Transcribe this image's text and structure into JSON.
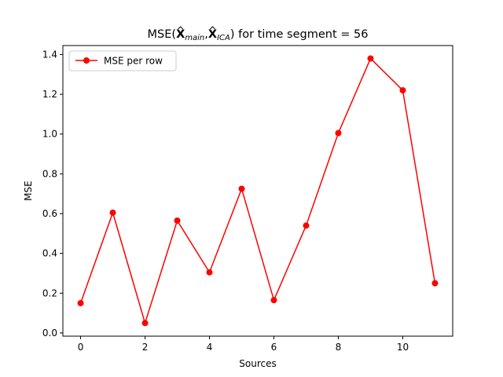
{
  "chart_data": {
    "type": "line",
    "title": {
      "prefix": "MSE(",
      "sym1": "X",
      "sub1": "main",
      "sep": ",",
      "sym2": "X",
      "sub2": "ICA",
      "suffix": ") for time segment = 56"
    },
    "xlabel": "Sources",
    "ylabel": "MSE",
    "xlim": [
      -0.55,
      11.55
    ],
    "ylim": [
      -0.016,
      1.445
    ],
    "xticks": [
      0,
      2,
      4,
      6,
      8,
      10
    ],
    "yticks": [
      0.0,
      0.2,
      0.4,
      0.6,
      0.8,
      1.0,
      1.2,
      1.4
    ],
    "ytick_labels": [
      "0.0",
      "0.2",
      "0.4",
      "0.6",
      "0.8",
      "1.0",
      "1.2",
      "1.4"
    ],
    "grid": false,
    "legend_position": "top-left",
    "series": [
      {
        "name": "MSE per row",
        "color": "#ff0000",
        "marker": "circle",
        "x": [
          0,
          1,
          2,
          3,
          4,
          5,
          6,
          7,
          8,
          9,
          10,
          11
        ],
        "y": [
          0.15,
          0.605,
          0.05,
          0.565,
          0.305,
          0.725,
          0.165,
          0.54,
          1.005,
          1.38,
          1.22,
          0.25
        ]
      }
    ]
  }
}
